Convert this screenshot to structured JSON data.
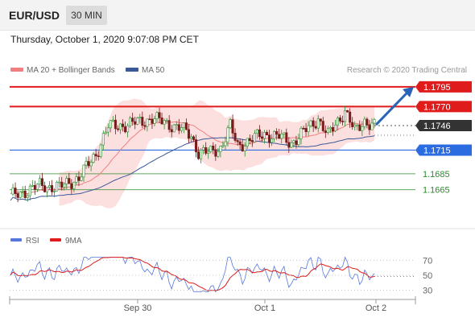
{
  "header": {
    "symbol": "EUR/USD",
    "timeframe": "30 MIN",
    "datetime": "Thursday, October 1, 2020 9:07:08 PM CET"
  },
  "chart_data": [
    {
      "type": "candlestick",
      "legend": [
        {
          "name": "MA 20 + Bollinger Bands",
          "color": "#f08080"
        },
        {
          "name": "MA 50",
          "color": "#3b5998"
        }
      ],
      "credit": "Research © 2020 Trading Central",
      "ylim": [
        1.1632,
        1.1803
      ],
      "x_ticks": [
        "Sep 30",
        "Oct 1",
        "Oct 2"
      ],
      "last_price": 1.1746,
      "levels": [
        {
          "value": 1.1795,
          "label": "1.1795",
          "style": "resistance-target",
          "color": "#e01b1b"
        },
        {
          "value": 1.177,
          "label": "1.1770",
          "style": "resistance",
          "color": "#e01b1b"
        },
        {
          "value": 1.1746,
          "label": "1.1746",
          "style": "last-price",
          "color": "#333333"
        },
        {
          "value": 1.1715,
          "label": "1.1715",
          "style": "pivot",
          "color": "#2b6de0"
        },
        {
          "value": 1.1685,
          "label": "1.1685",
          "style": "support",
          "color": "#2a8a2a"
        },
        {
          "value": 1.1665,
          "label": "1.1665",
          "style": "support",
          "color": "#2a8a2a"
        }
      ],
      "forecast_arrow": {
        "from": 1.1747,
        "to": 1.1795,
        "color": "#2a64b6"
      }
    },
    {
      "type": "line",
      "legend": [
        {
          "name": "RSI",
          "color": "#5577dd"
        },
        {
          "name": "9MA",
          "color": "#e01b1b"
        }
      ],
      "y_ticks": [
        70,
        50,
        30
      ],
      "ylim": [
        20,
        80
      ],
      "x_ticks": [
        "Sep 30",
        "Oct 1",
        "Oct 2"
      ]
    }
  ],
  "colors": {
    "bullish": "#2e8b2e",
    "bearish": "#7a1a1a",
    "band_fill": "#fbd3d3",
    "ma20": "#f08080",
    "ma50": "#3b5998"
  }
}
